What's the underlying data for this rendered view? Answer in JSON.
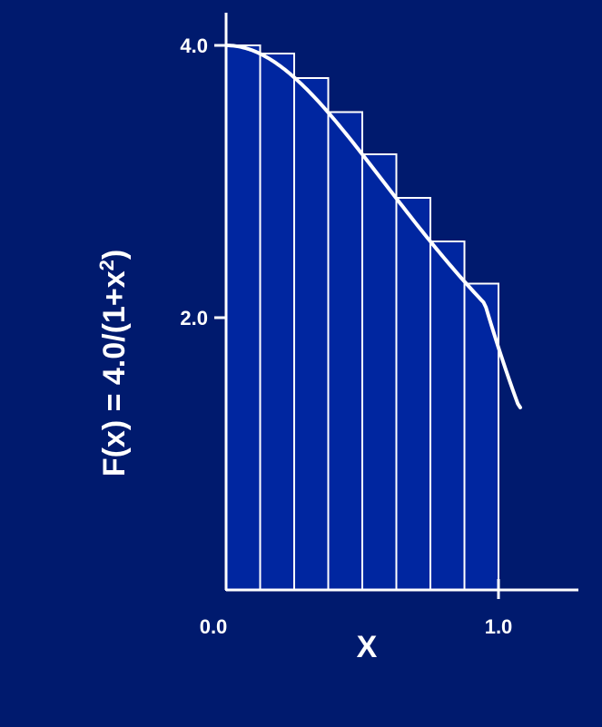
{
  "colors": {
    "background": "#001a6e",
    "bar_fill": "#0026a0",
    "line": "#ffffff",
    "text": "#ffffff"
  },
  "chart_data": {
    "type": "bar",
    "title": "",
    "xlabel": "X",
    "ylabel_main": "F(x) = 4.0/(1+x",
    "ylabel_sup": "2",
    "ylabel_end": ")",
    "xlim": [
      0.0,
      1.0
    ],
    "ylim": [
      0.0,
      4.0
    ],
    "x_ticks": [
      {
        "value": 0.0,
        "label": "0.0"
      },
      {
        "value": 1.0,
        "label": "1.0"
      }
    ],
    "y_ticks": [
      {
        "value": 2.0,
        "label": "2.0"
      },
      {
        "value": 4.0,
        "label": "4.0"
      }
    ],
    "bins": 8,
    "values": [
      4.0,
      3.94,
      3.76,
      3.51,
      3.2,
      2.88,
      2.56,
      2.25
    ],
    "curve": {
      "function": "4.0/(1+x^2)",
      "x_range": [
        0.0,
        1.08
      ]
    },
    "grid": false,
    "legend": "none"
  }
}
